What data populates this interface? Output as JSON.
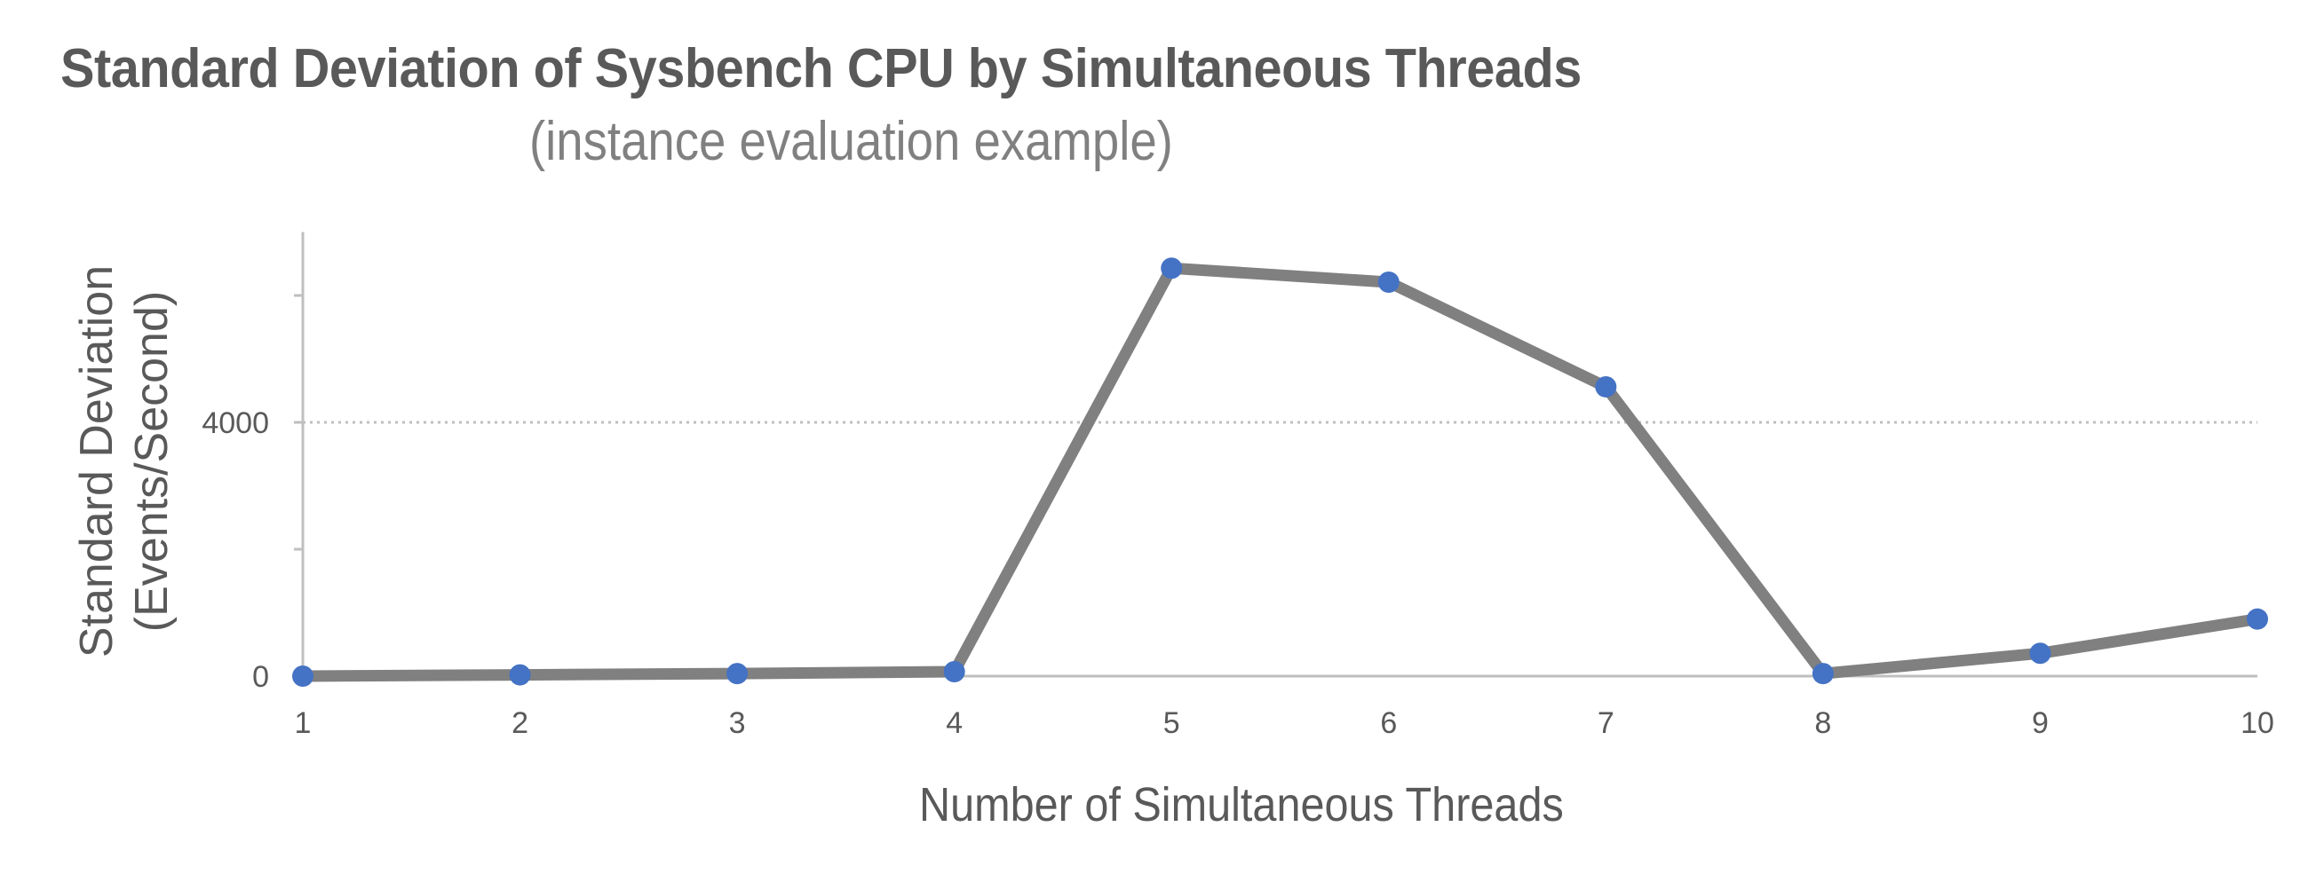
{
  "chart": {
    "title": "Standard Deviation of Sysbench CPU by Simultaneous Threads",
    "subtitle": "(instance evaluation example)",
    "y_axis_label_line1": "Standard Deviation",
    "y_axis_label_line2": "(Events/Second)",
    "x_axis_label": "Number of Simultaneous Threads",
    "y_tick_labels": [
      "0",
      "4000"
    ],
    "x_tick_labels": [
      "1",
      "2",
      "3",
      "4",
      "5",
      "6",
      "7",
      "8",
      "9",
      "10"
    ],
    "colors": {
      "line": "#808080",
      "marker": "#4472C4",
      "axis": "#BFBFBF",
      "gridline": "#BFBFBF",
      "title": "#595959",
      "subtitle": "#808080"
    }
  },
  "chart_data": {
    "type": "line",
    "title": "Standard Deviation of Sysbench CPU by Simultaneous Threads",
    "subtitle": "(instance evaluation example)",
    "xlabel": "Number of Simultaneous Threads",
    "ylabel": "Standard Deviation (Events/Second)",
    "x": [
      1,
      2,
      3,
      4,
      5,
      6,
      7,
      8,
      9,
      10
    ],
    "series": [
      {
        "name": "Standard Deviation",
        "values": [
          0,
          20,
          40,
          70,
          6430,
          6210,
          4560,
          40,
          360,
          900
        ]
      }
    ],
    "ylim": [
      0,
      7000
    ],
    "y_ticks_labeled": [
      0,
      4000
    ],
    "y_ticks_minor": [
      2000,
      6000
    ],
    "gridlines": [
      4000
    ],
    "grid": "dotted horizontal at 4000",
    "legend": "none"
  }
}
